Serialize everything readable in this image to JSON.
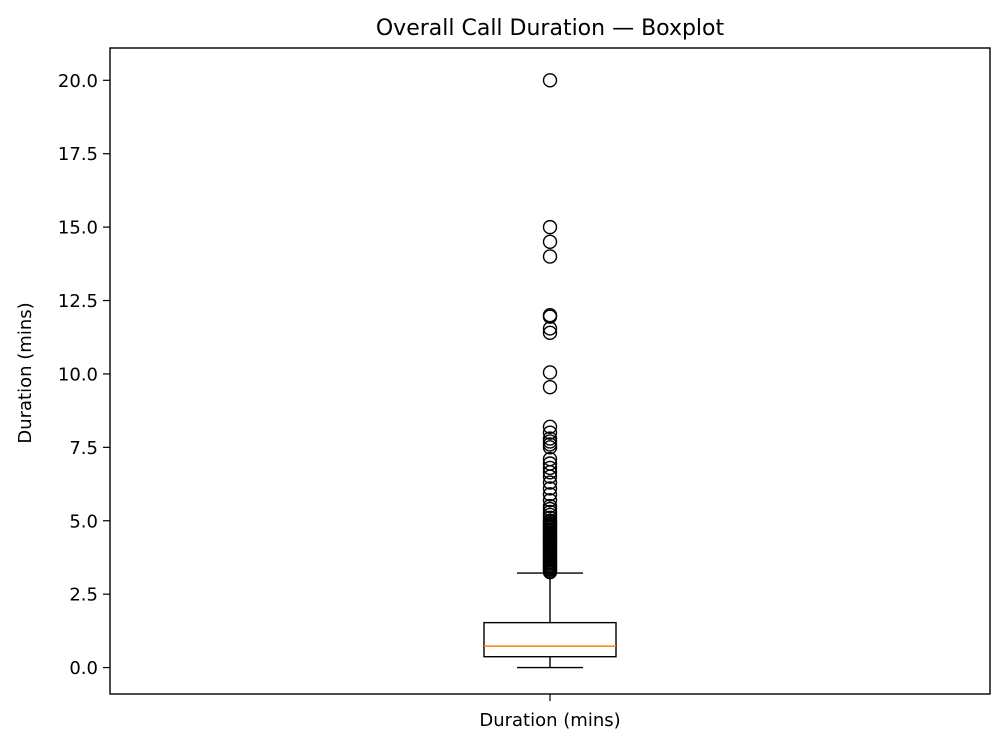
{
  "chart_data": {
    "type": "boxplot",
    "title": "Overall Call Duration — Boxplot",
    "xlabel": "",
    "ylabel": "Duration (mins)",
    "categories": [
      "Duration (mins)"
    ],
    "ylim": [
      -0.9,
      21.1
    ],
    "yticks": [
      0.0,
      2.5,
      5.0,
      7.5,
      10.0,
      12.5,
      15.0,
      17.5,
      20.0
    ],
    "ytick_labels": [
      "0.0",
      "2.5",
      "5.0",
      "7.5",
      "10.0",
      "12.5",
      "15.0",
      "17.5",
      "20.0"
    ],
    "grid": false,
    "box": {
      "whisker_low": 0.0,
      "q1": 0.37,
      "median": 0.73,
      "q3": 1.53,
      "whisker_high": 3.22
    },
    "outliers": [
      3.25,
      3.3,
      3.35,
      3.4,
      3.45,
      3.5,
      3.55,
      3.6,
      3.65,
      3.7,
      3.75,
      3.8,
      3.85,
      3.9,
      3.95,
      4.0,
      4.05,
      4.1,
      4.15,
      4.2,
      4.25,
      4.3,
      4.35,
      4.4,
      4.45,
      4.5,
      4.55,
      4.6,
      4.65,
      4.7,
      4.75,
      4.8,
      4.85,
      4.9,
      4.95,
      5.0,
      5.1,
      5.2,
      5.3,
      5.4,
      5.5,
      5.7,
      5.9,
      6.1,
      6.3,
      6.5,
      6.65,
      6.8,
      6.95,
      7.1,
      7.5,
      7.6,
      7.7,
      7.8,
      8.0,
      8.2,
      9.55,
      10.05,
      11.4,
      11.55,
      11.95,
      12.0,
      14.0,
      14.5,
      15.0,
      20.0
    ],
    "colors": {
      "box": "#000000",
      "median": "#ff7f0e",
      "outlier_edge": "#000000"
    }
  }
}
